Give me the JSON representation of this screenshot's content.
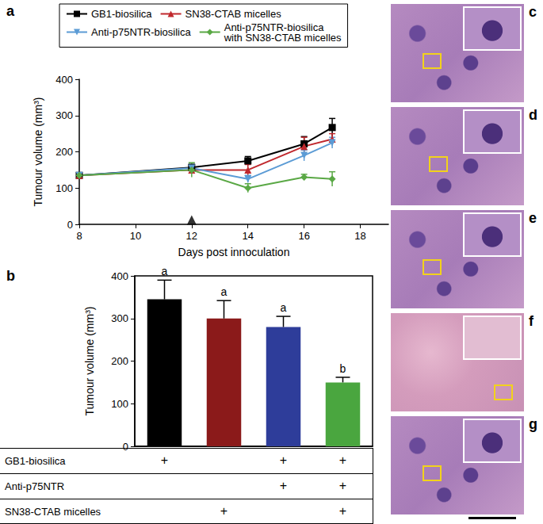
{
  "chart_data": [
    {
      "panel": "a",
      "type": "line",
      "x_label": "Days post innoculation",
      "y_label": "Tumour volume (mm³)",
      "x": [
        8,
        12,
        14,
        16,
        17
      ],
      "xlim": [
        8,
        19
      ],
      "xticks": [
        8,
        10,
        12,
        14,
        16,
        18
      ],
      "ylim": [
        0,
        400
      ],
      "yticks": [
        0,
        100,
        200,
        300,
        400
      ],
      "grid": false,
      "legend": "top",
      "series": [
        {
          "name": "GB1-biosilica",
          "color": "#000000",
          "marker": "square",
          "values": [
            135,
            157,
            175,
            222,
            267
          ],
          "errors": [
            5,
            8,
            12,
            20,
            25
          ]
        },
        {
          "name": "SN38-CTAB micelles",
          "color": "#c0282d",
          "marker": "triangle",
          "values": [
            135,
            150,
            150,
            215,
            235
          ],
          "errors": [
            5,
            8,
            15,
            25,
            15
          ]
        },
        {
          "name": "Anti-p75NTR-biosilica",
          "color": "#5b9bd5",
          "marker": "triangle-down",
          "values": [
            135,
            155,
            125,
            190,
            225
          ],
          "errors": [
            5,
            10,
            10,
            15,
            15
          ]
        },
        {
          "name": "Anti-p75NTR-biosilica with SN38-CTAB micelles",
          "color": "#5aa845",
          "marker": "diamond",
          "values": [
            135,
            150,
            100,
            130,
            125
          ],
          "errors": [
            5,
            20,
            12,
            8,
            20
          ]
        }
      ],
      "annotations": [
        {
          "x": 12,
          "y": 12,
          "marker": "triangle"
        }
      ]
    },
    {
      "panel": "b",
      "type": "bar",
      "y_label": "Tumour volume (mm³)",
      "categories": [
        null,
        null,
        null,
        null
      ],
      "values": [
        345,
        300,
        280,
        150
      ],
      "errors": [
        45,
        42,
        25,
        12
      ],
      "colors": [
        "#000000",
        "#8b1a1a",
        "#2e3d9a",
        "#4aa63f"
      ],
      "significance": [
        "a",
        "a",
        "a",
        "b"
      ],
      "ylim": [
        0,
        400
      ],
      "yticks": [
        0,
        100,
        200,
        300,
        400
      ],
      "grid": false,
      "treatment_table": [
        {
          "label": "GB1-biosilica",
          "marks": [
            "+",
            null,
            "+",
            "+"
          ]
        },
        {
          "label": "Anti-p75NTR",
          "marks": [
            null,
            null,
            "+",
            "+"
          ]
        },
        {
          "label": "SN38-CTAB micelles",
          "marks": [
            null,
            "+",
            null,
            "+"
          ]
        }
      ]
    }
  ],
  "images": [
    {
      "panel": "c"
    },
    {
      "panel": "d"
    },
    {
      "panel": "e"
    },
    {
      "panel": "f"
    },
    {
      "panel": "g"
    }
  ]
}
